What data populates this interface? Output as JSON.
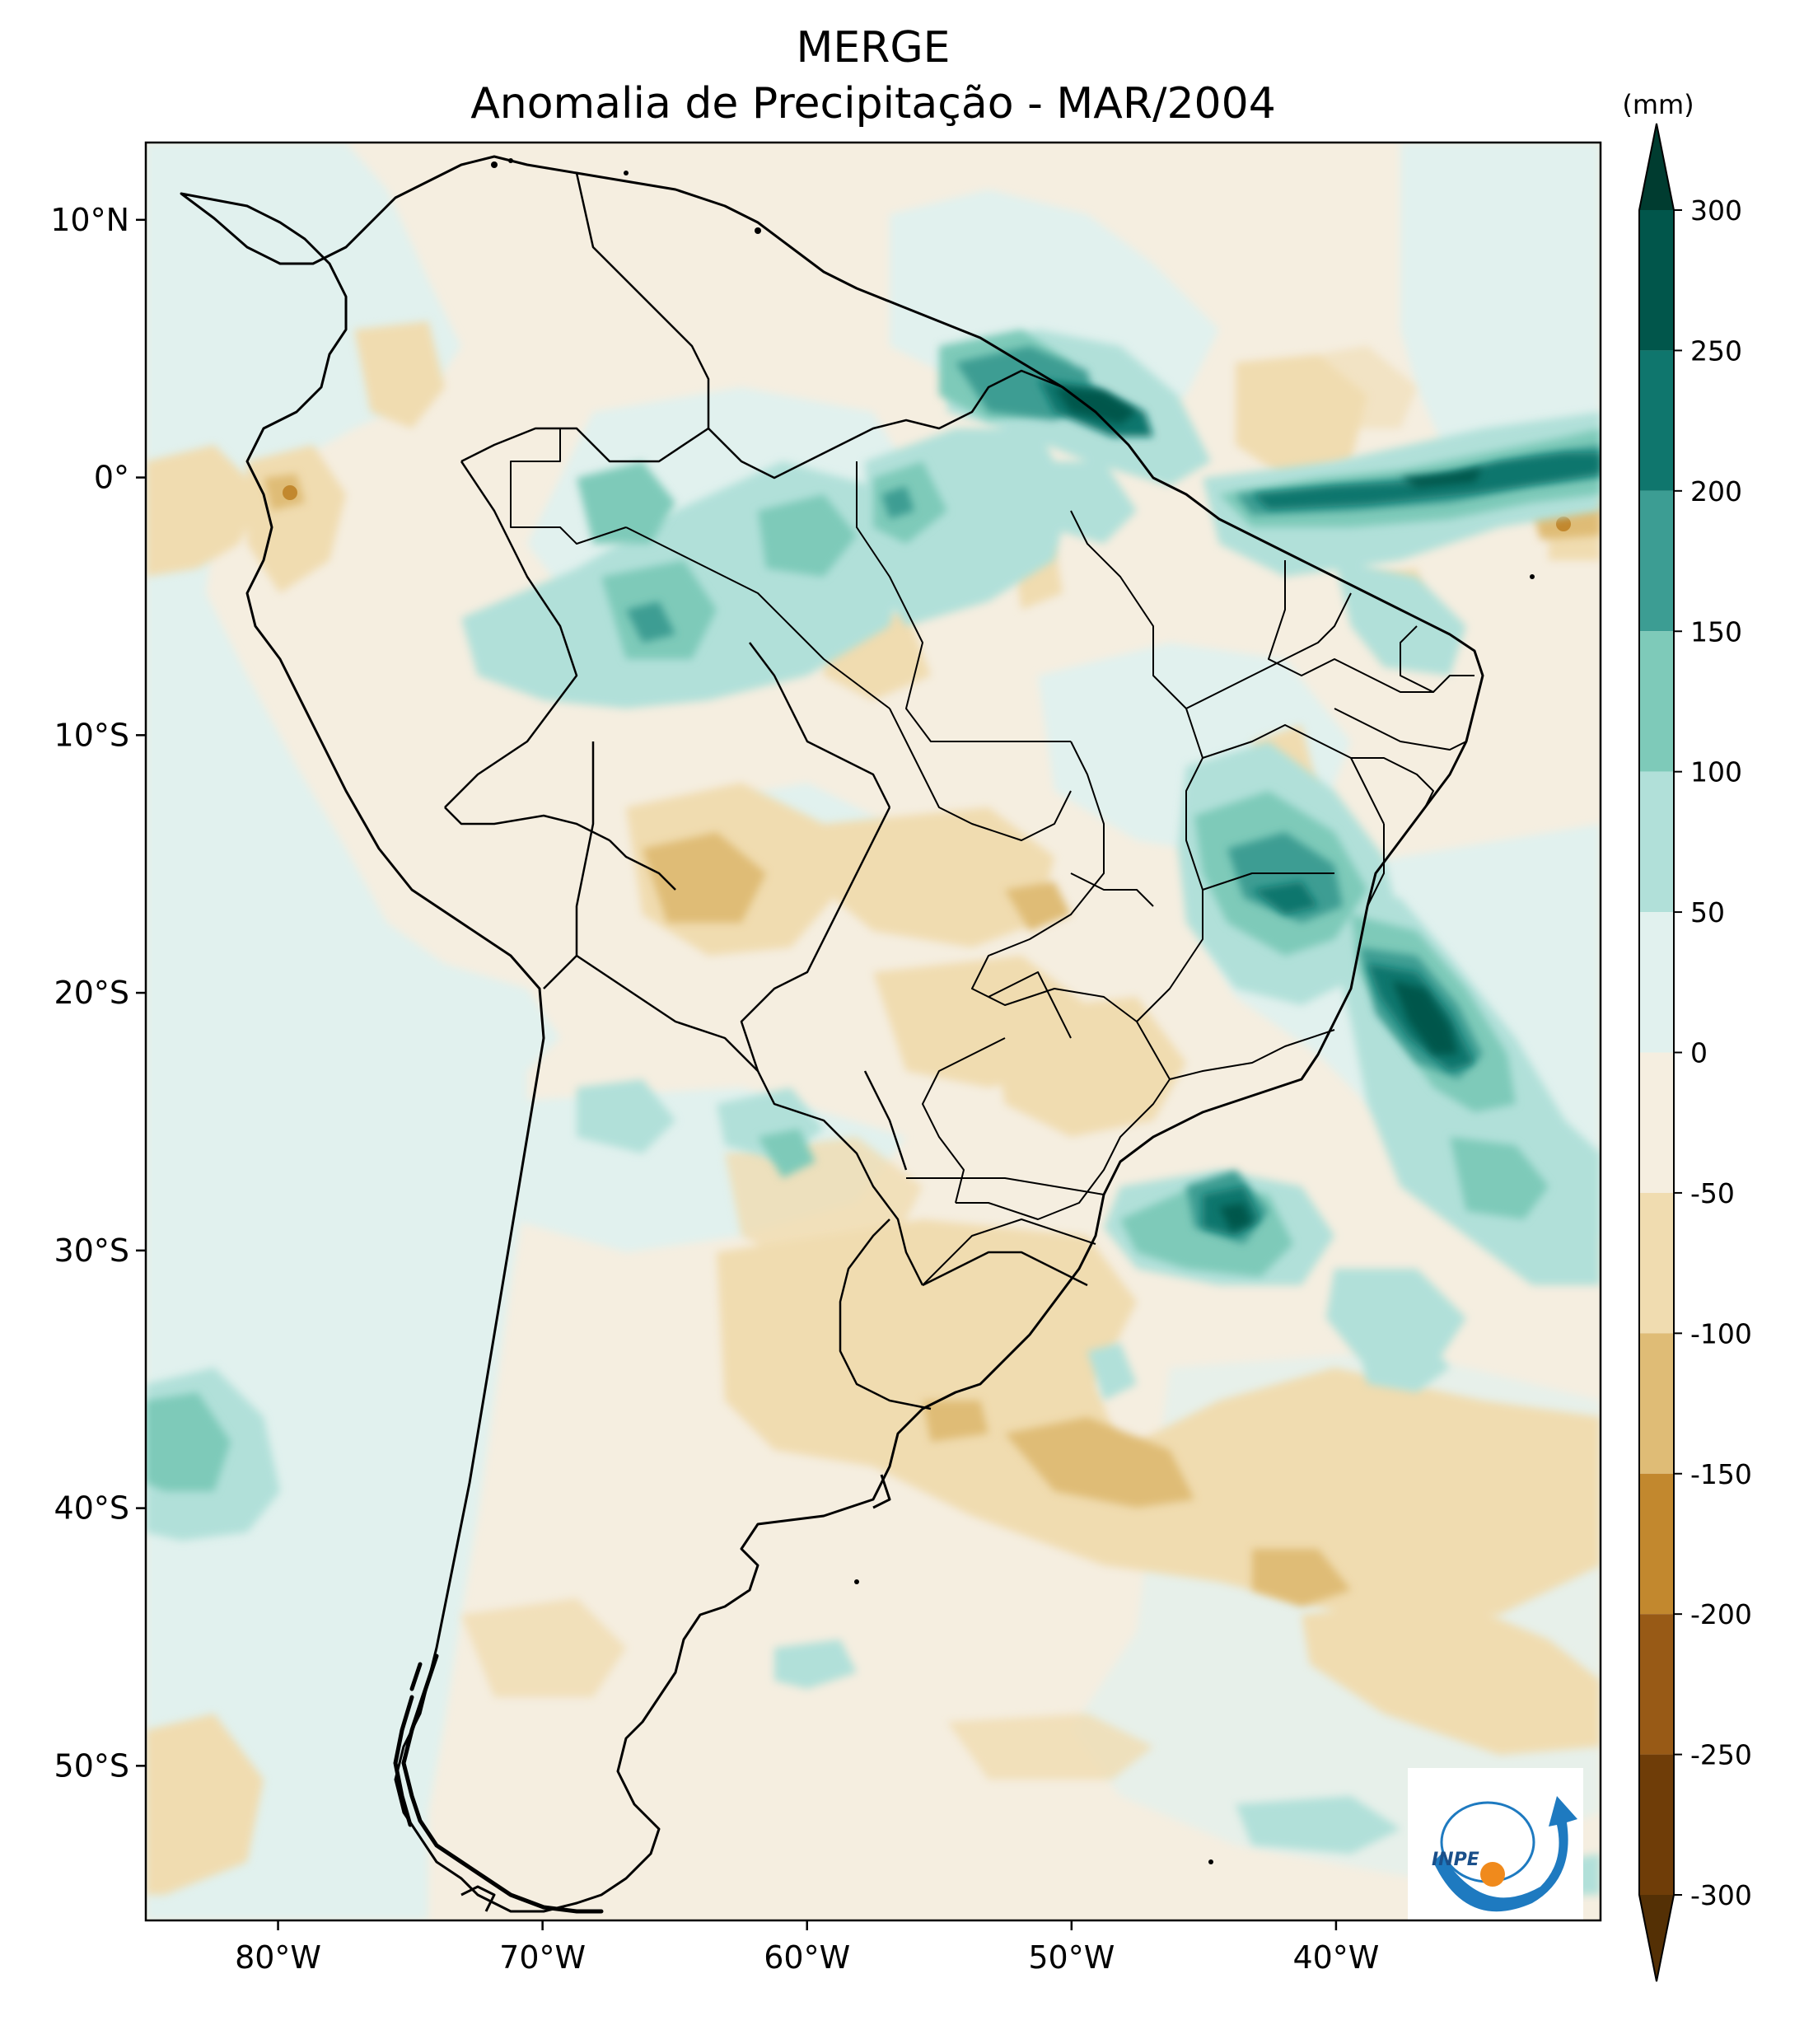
{
  "title": "MERGE",
  "subtitle": "Anomalia de Precipitação - MAR/2004",
  "map": {
    "lon_range": [
      -85,
      -30
    ],
    "lat_range": [
      -56,
      13
    ],
    "lon_ticks": [
      {
        "value": -80,
        "label": "80°W"
      },
      {
        "value": -70,
        "label": "70°W"
      },
      {
        "value": -60,
        "label": "60°W"
      },
      {
        "value": -50,
        "label": "50°W"
      },
      {
        "value": -40,
        "label": "40°W"
      }
    ],
    "lat_ticks": [
      {
        "value": 10,
        "label": "10°N"
      },
      {
        "value": 0,
        "label": "0°"
      },
      {
        "value": -10,
        "label": "10°S"
      },
      {
        "value": -20,
        "label": "20°S"
      },
      {
        "value": -30,
        "label": "30°S"
      },
      {
        "value": -40,
        "label": "40°S"
      },
      {
        "value": -50,
        "label": "50°S"
      }
    ]
  },
  "colorbar": {
    "units": "(mm)",
    "levels": [
      {
        "value": 300,
        "label": "300"
      },
      {
        "value": 250,
        "label": "250"
      },
      {
        "value": 200,
        "label": "200"
      },
      {
        "value": 150,
        "label": "150"
      },
      {
        "value": 100,
        "label": "100"
      },
      {
        "value": 50,
        "label": "50"
      },
      {
        "value": 0,
        "label": "0"
      },
      {
        "value": -50,
        "label": "-50"
      },
      {
        "value": -100,
        "label": "-100"
      },
      {
        "value": -150,
        "label": "-150"
      },
      {
        "value": -200,
        "label": "-200"
      },
      {
        "value": -250,
        "label": "-250"
      },
      {
        "value": -300,
        "label": "-300"
      }
    ],
    "colors_top_to_bottom": [
      "#003c30",
      "#01564b",
      "#0f766d",
      "#3c9d93",
      "#7ecab9",
      "#b1e0d9",
      "#e1f1ee",
      "#f5eee0",
      "#f0dcb0",
      "#dfbc76",
      "#c2882e",
      "#985a16",
      "#6f3d08",
      "#543005"
    ]
  },
  "logo": {
    "text": "INPE"
  }
}
